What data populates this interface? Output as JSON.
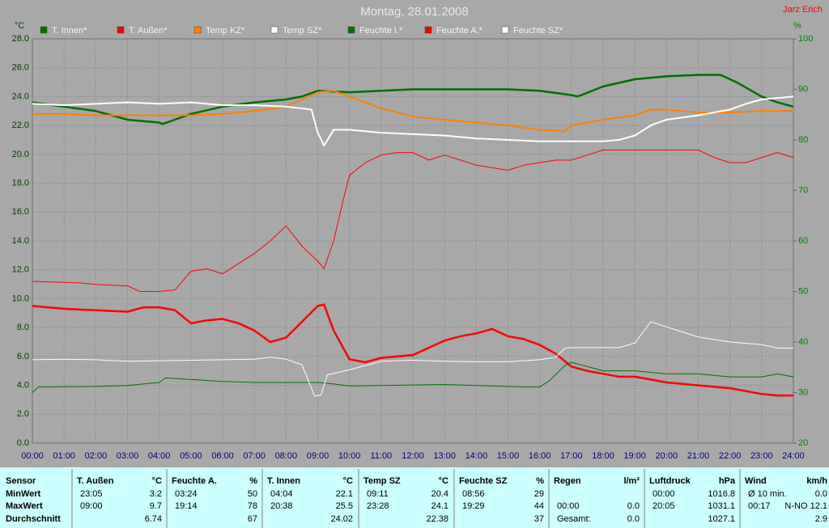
{
  "chart_data": {
    "type": "line",
    "title": "Montag, 28.01.2008",
    "author": "Jarz Erich",
    "y_label": "°C",
    "y2_label": "%",
    "grid": true,
    "xlim": [
      0,
      24
    ],
    "xticks": [
      {
        "value": 0,
        "label": "00:00"
      },
      {
        "value": 1,
        "label": "01:00"
      },
      {
        "value": 2,
        "label": "02:00"
      },
      {
        "value": 3,
        "label": "03:00"
      },
      {
        "value": 4,
        "label": "04:00"
      },
      {
        "value": 5,
        "label": "05:00"
      },
      {
        "value": 6,
        "label": "06:00"
      },
      {
        "value": 7,
        "label": "07:00"
      },
      {
        "value": 8,
        "label": "08:00"
      },
      {
        "value": 9,
        "label": "09:00"
      },
      {
        "value": 10,
        "label": "10:00"
      },
      {
        "value": 11,
        "label": "11:00"
      },
      {
        "value": 12,
        "label": "12:00"
      },
      {
        "value": 13,
        "label": "13:00"
      },
      {
        "value": 14,
        "label": "14:00"
      },
      {
        "value": 15,
        "label": "15:00"
      },
      {
        "value": 16,
        "label": "16:00"
      },
      {
        "value": 17,
        "label": "17:00"
      },
      {
        "value": 18,
        "label": "18:00"
      },
      {
        "value": 19,
        "label": "19:00"
      },
      {
        "value": 20,
        "label": "20:00"
      },
      {
        "value": 21,
        "label": "21:00"
      },
      {
        "value": 22,
        "label": "22:00"
      },
      {
        "value": 23,
        "label": "23:00"
      },
      {
        "value": 24,
        "label": "24:00"
      }
    ],
    "ylim": [
      0,
      28
    ],
    "yticks": [
      {
        "value": 0,
        "label": "0.0"
      },
      {
        "value": 2,
        "label": "2.0"
      },
      {
        "value": 4,
        "label": "4.0"
      },
      {
        "value": 6,
        "label": "6.0"
      },
      {
        "value": 8,
        "label": "8.0"
      },
      {
        "value": 10,
        "label": "10.0"
      },
      {
        "value": 12,
        "label": "12.0"
      },
      {
        "value": 14,
        "label": "14.0"
      },
      {
        "value": 16,
        "label": "16.0"
      },
      {
        "value": 18,
        "label": "18.0"
      },
      {
        "value": 20,
        "label": "20.0"
      },
      {
        "value": 22,
        "label": "22.0"
      },
      {
        "value": 24,
        "label": "24.0"
      },
      {
        "value": 26,
        "label": "26.0"
      },
      {
        "value": 28,
        "label": "28.0"
      }
    ],
    "y2lim": [
      20,
      100
    ],
    "y2ticks": [
      20,
      30,
      40,
      50,
      60,
      70,
      80,
      90,
      100
    ],
    "series": [
      {
        "name": "T. Innen*",
        "color": "#007000",
        "line_width": 2.5,
        "x": [
          0,
          2,
          3,
          4,
          4.1,
          5,
          6,
          7,
          8,
          8.5,
          9,
          10,
          11,
          12,
          13,
          14,
          15,
          16,
          17,
          17.2,
          18,
          19,
          20,
          21,
          21.7,
          22.2,
          22.6,
          23,
          23.5,
          24
        ],
        "values": [
          23.6,
          23.0,
          22.4,
          22.2,
          22.1,
          22.8,
          23.3,
          23.6,
          23.8,
          24.0,
          24.4,
          24.3,
          24.4,
          24.5,
          24.5,
          24.5,
          24.5,
          24.4,
          24.1,
          24.0,
          24.7,
          25.2,
          25.4,
          25.5,
          25.5,
          25.0,
          24.5,
          24.0,
          23.6,
          23.3
        ]
      },
      {
        "name": "T. Außen*",
        "color": "#ff0000",
        "line_width": 2.5,
        "x": [
          0,
          1,
          2,
          3,
          3.5,
          4,
          4.5,
          5,
          5.5,
          6,
          6.5,
          7,
          7.5,
          8,
          8.5,
          9,
          9.2,
          9.5,
          10,
          10.5,
          11,
          12,
          12.5,
          13,
          13.5,
          14,
          14.5,
          15,
          15.5,
          16,
          16.5,
          17,
          17.5,
          18,
          18.5,
          19,
          19.5,
          20,
          20.5,
          21,
          21.5,
          22,
          22.5,
          23,
          23.5,
          24
        ],
        "values": [
          9.5,
          9.3,
          9.2,
          9.1,
          9.4,
          9.4,
          9.2,
          8.3,
          8.5,
          8.6,
          8.3,
          7.8,
          7.0,
          7.3,
          8.4,
          9.5,
          9.6,
          7.8,
          5.8,
          5.6,
          5.9,
          6.1,
          6.6,
          7.1,
          7.4,
          7.6,
          7.9,
          7.4,
          7.2,
          6.8,
          6.2,
          5.3,
          5.0,
          4.8,
          4.6,
          4.6,
          4.4,
          4.2,
          4.1,
          4.0,
          3.9,
          3.8,
          3.6,
          3.4,
          3.3,
          3.3
        ]
      },
      {
        "name": "Temp KZ*",
        "color": "#ff8000",
        "line_width": 2,
        "x": [
          0,
          1,
          2,
          3,
          4,
          5,
          6,
          7,
          8,
          8.5,
          9,
          9.5,
          10,
          11,
          12,
          13,
          14,
          15,
          16,
          16.8,
          17,
          18,
          19,
          19.5,
          20,
          21,
          22,
          23,
          24
        ],
        "values": [
          22.8,
          22.8,
          22.7,
          22.7,
          22.7,
          22.7,
          22.8,
          23.0,
          23.3,
          23.8,
          24.3,
          24.4,
          24.0,
          23.2,
          22.6,
          22.4,
          22.2,
          22.0,
          21.7,
          21.6,
          22.0,
          22.4,
          22.7,
          23.1,
          23.1,
          22.9,
          22.9,
          23.0,
          23.0
        ]
      },
      {
        "name": "Temp SZ*",
        "color": "#ffffff",
        "line_width": 2,
        "x": [
          0,
          1,
          2,
          3,
          4,
          5,
          6,
          7,
          8,
          8.8,
          9,
          9.2,
          9.5,
          10,
          11,
          12,
          13,
          14,
          15,
          16,
          17,
          18,
          18.5,
          19,
          19.5,
          20,
          21,
          22,
          22.5,
          23,
          24
        ],
        "values": [
          23.5,
          23.4,
          23.5,
          23.6,
          23.5,
          23.6,
          23.4,
          23.4,
          23.3,
          23.1,
          21.5,
          20.6,
          21.7,
          21.7,
          21.5,
          21.4,
          21.3,
          21.1,
          21.0,
          20.9,
          20.9,
          20.9,
          21.0,
          21.3,
          22.0,
          22.4,
          22.7,
          23.1,
          23.5,
          23.8,
          24.0
        ]
      },
      {
        "name": "Feuchte I.*",
        "color": "#007000",
        "line_width": 1,
        "axis": "y2",
        "x": [
          0,
          0.2,
          2,
          3,
          4,
          4.2,
          6,
          7,
          9,
          9.5,
          10,
          11,
          12,
          13,
          14,
          15.5,
          16,
          16.3,
          16.8,
          17,
          18,
          19,
          20,
          21,
          22,
          22.5,
          23,
          23.5,
          24
        ],
        "values": [
          30,
          31.1,
          31.2,
          31.4,
          32,
          32.9,
          32.2,
          32,
          32,
          31.7,
          31.3,
          31.4,
          31.5,
          31.6,
          31.4,
          31.1,
          31.1,
          32.3,
          35.4,
          36,
          34.3,
          34.3,
          33.7,
          33.7,
          33.1,
          33.1,
          33.1,
          33.7,
          33.1
        ]
      },
      {
        "name": "Feuchte A.*",
        "color": "#ff0000",
        "line_width": 1,
        "axis": "y2",
        "x": [
          0,
          1.5,
          2,
          3,
          3.4,
          4,
          4.5,
          5,
          5.5,
          6,
          6.5,
          7,
          7.5,
          8,
          8.5,
          9,
          9.2,
          9.5,
          9.8,
          10,
          10.5,
          11,
          11.5,
          12,
          12.5,
          13,
          13.5,
          14,
          15,
          15.5,
          16,
          16.5,
          17,
          17.5,
          18,
          19,
          20,
          21,
          21.5,
          22,
          22.5,
          23,
          23.5,
          24
        ],
        "values": [
          52,
          51.7,
          51.4,
          51.1,
          50,
          50,
          50.3,
          54,
          54.5,
          53.5,
          55.5,
          57.5,
          60,
          63,
          59,
          56,
          54.5,
          60,
          68,
          73,
          75.5,
          77,
          77.5,
          77.5,
          76,
          77,
          76,
          75,
          74,
          75,
          75.5,
          76,
          76,
          77,
          78,
          78,
          78,
          78,
          76.5,
          75.5,
          75.5,
          76.5,
          77.5,
          76.5
        ]
      },
      {
        "name": "Feuchte SZ*",
        "color": "#ffffff",
        "line_width": 1,
        "axis": "y2",
        "x": [
          0,
          1,
          2,
          3,
          4,
          5,
          6,
          7,
          7.5,
          8,
          8.5,
          8.9,
          9.1,
          9.3,
          10,
          11,
          12,
          13,
          14,
          15,
          16,
          16.5,
          16.8,
          17,
          18,
          18.5,
          19,
          19.5,
          20,
          20.5,
          21,
          21.5,
          22,
          23,
          23.5,
          24
        ],
        "values": [
          36.5,
          36.6,
          36.5,
          36.2,
          36.3,
          36.4,
          36.5,
          36.6,
          37,
          36.6,
          35.5,
          29.3,
          29.5,
          33.5,
          34.5,
          36.2,
          36.4,
          36.2,
          36.1,
          36.1,
          36.5,
          37,
          38.8,
          38.9,
          38.9,
          38.9,
          39.8,
          44,
          43,
          42,
          41,
          40.5,
          40,
          39.5,
          38.8,
          38.8
        ]
      }
    ]
  },
  "table": {
    "row_labels": [
      "Sensor",
      "MinWert",
      "MaxWert",
      "Durchschnitt"
    ],
    "groups": [
      {
        "name": "T. Außen",
        "unit": "°C",
        "rows": [
          [
            "23:05",
            "3.2"
          ],
          [
            "09:00",
            "9.7"
          ],
          [
            null,
            "6.74"
          ]
        ]
      },
      {
        "name": "Feuchte A.",
        "unit": "%",
        "rows": [
          [
            "03:24",
            "50"
          ],
          [
            "19:14",
            "78"
          ],
          [
            null,
            "67"
          ]
        ]
      },
      {
        "name": "T. Innen",
        "unit": "°C",
        "rows": [
          [
            "04:04",
            "22.1"
          ],
          [
            "20:38",
            "25.5"
          ],
          [
            null,
            "24.02"
          ]
        ]
      },
      {
        "name": "Temp SZ",
        "unit": "°C",
        "rows": [
          [
            "09:11",
            "20.4"
          ],
          [
            "23:28",
            "24.1"
          ],
          [
            null,
            "22.38"
          ]
        ]
      },
      {
        "name": "Feuchte SZ",
        "unit": "%",
        "rows": [
          [
            "08:56",
            "29"
          ],
          [
            "19:29",
            "44"
          ],
          [
            null,
            "37"
          ]
        ]
      },
      {
        "name": "Regen",
        "unit": "l/m²",
        "rows": [
          [
            null,
            null
          ],
          [
            "00:00",
            "0.0"
          ],
          [
            "Gesamt:",
            "0.0"
          ]
        ]
      },
      {
        "name": "Luftdruck",
        "unit": "hPa",
        "rows": [
          [
            "00:00",
            "1016.8"
          ],
          [
            "20:05",
            "1031.1"
          ],
          [
            null,
            "1027.1"
          ]
        ]
      },
      {
        "name": "Wind",
        "unit": "km/h",
        "rows": [
          [
            "Ø 10 min.",
            "0.0"
          ],
          [
            "00:17",
            "N-NO 12.1"
          ],
          [
            null,
            "2.9"
          ]
        ]
      }
    ]
  }
}
